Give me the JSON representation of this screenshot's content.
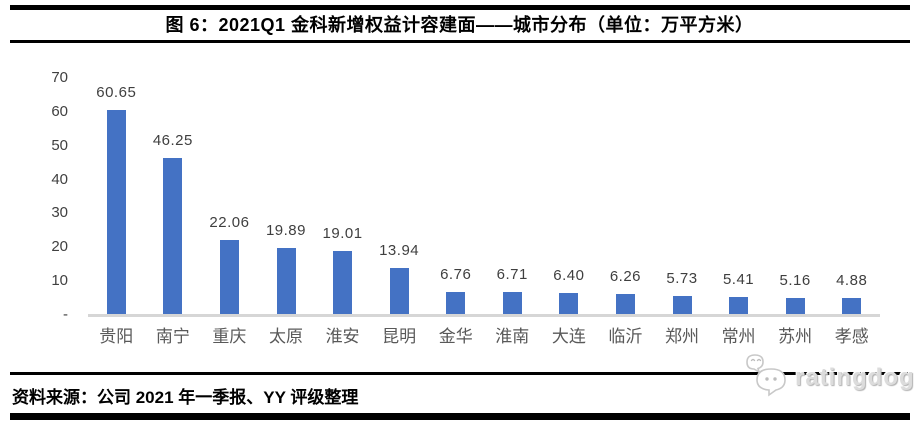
{
  "header": {
    "title": "图 6：2021Q1 金科新增权益计容建面——城市分布（单位：万平方米）"
  },
  "footer": {
    "source": "资料来源：公司 2021 年一季报、YY 评级整理",
    "logo_text": "ratingdog"
  },
  "chart_data": {
    "type": "bar",
    "title": "2021Q1 金科新增权益计容建面——城市分布",
    "unit": "万平方米",
    "categories": [
      "贵阳",
      "南宁",
      "重庆",
      "太原",
      "淮安",
      "昆明",
      "金华",
      "淮南",
      "大连",
      "临沂",
      "郑州",
      "常州",
      "苏州",
      "孝感"
    ],
    "values": [
      60.65,
      46.25,
      22.06,
      19.89,
      19.01,
      13.94,
      6.76,
      6.71,
      6.4,
      6.26,
      5.73,
      5.41,
      5.16,
      4.88
    ],
    "value_labels": [
      "60.65",
      "46.25",
      "22.06",
      "19.89",
      "19.01",
      "13.94",
      "6.76",
      "6.71",
      "6.40",
      "6.26",
      "5.73",
      "5.41",
      "5.16",
      "4.88"
    ],
    "ylim": [
      0,
      70
    ],
    "yticks": {
      "values": [
        0,
        10,
        20,
        30,
        40,
        50,
        60,
        70
      ],
      "labels": [
        "-",
        "10",
        "20",
        "30",
        "40",
        "50",
        "60",
        "70"
      ]
    },
    "grid": false,
    "legend": "none",
    "bar_color": "#4472c4",
    "axis_color": "#d6d6d6",
    "label_color": "#3f3f3f",
    "xtick_color": "#595959"
  }
}
